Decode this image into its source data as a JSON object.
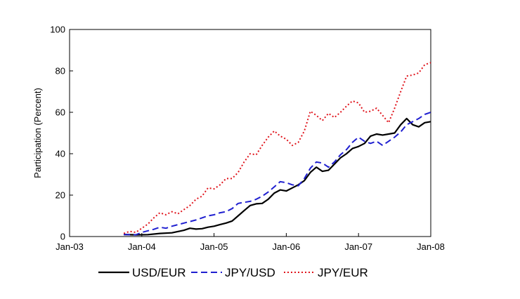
{
  "chart_data": {
    "type": "line",
    "title": "",
    "xlabel": "",
    "ylabel": "Participation (Percent)",
    "xlim": [
      "2003-01",
      "2008-01"
    ],
    "ylim": [
      0,
      100
    ],
    "grid": false,
    "legend_position": "bottom",
    "x_ticks": [
      "Jan-03",
      "Jan-04",
      "Jan-05",
      "Jan-06",
      "Jan-07",
      "Jan-08"
    ],
    "y_ticks": [
      0,
      20,
      40,
      60,
      80,
      100
    ],
    "series": [
      {
        "name": "USD/EUR",
        "color": "#000000",
        "style": "solid",
        "points": [
          [
            "2003-10",
            1.0
          ],
          [
            "2003-12",
            0.8
          ],
          [
            "2004-02",
            0.9
          ],
          [
            "2004-04",
            1.5
          ],
          [
            "2004-06",
            1.8
          ],
          [
            "2004-08",
            3.0
          ],
          [
            "2004-09",
            4.0
          ],
          [
            "2004-10",
            3.6
          ],
          [
            "2004-11",
            3.8
          ],
          [
            "2004-12",
            4.5
          ],
          [
            "2005-01",
            5.0
          ],
          [
            "2005-02",
            5.8
          ],
          [
            "2005-03",
            6.5
          ],
          [
            "2005-04",
            7.5
          ],
          [
            "2005-05",
            10.0
          ],
          [
            "2005-06",
            12.5
          ],
          [
            "2005-07",
            15.0
          ],
          [
            "2005-08",
            15.8
          ],
          [
            "2005-09",
            16.0
          ],
          [
            "2005-10",
            18.0
          ],
          [
            "2005-11",
            21.0
          ],
          [
            "2005-12",
            22.5
          ],
          [
            "2006-01",
            22.0
          ],
          [
            "2006-02",
            23.5
          ],
          [
            "2006-03",
            25.0
          ],
          [
            "2006-04",
            27.0
          ],
          [
            "2006-05",
            31.0
          ],
          [
            "2006-06",
            33.5
          ],
          [
            "2006-07",
            31.5
          ],
          [
            "2006-08",
            32.0
          ],
          [
            "2006-09",
            35.0
          ],
          [
            "2006-10",
            38.0
          ],
          [
            "2006-11",
            40.0
          ],
          [
            "2006-12",
            42.5
          ],
          [
            "2007-01",
            43.5
          ],
          [
            "2007-02",
            45.0
          ],
          [
            "2007-03",
            48.5
          ],
          [
            "2007-04",
            49.5
          ],
          [
            "2007-05",
            49.0
          ],
          [
            "2007-06",
            49.5
          ],
          [
            "2007-07",
            50.0
          ],
          [
            "2007-08",
            54.0
          ],
          [
            "2007-09",
            57.0
          ],
          [
            "2007-10",
            54.0
          ],
          [
            "2007-11",
            53.0
          ],
          [
            "2007-12",
            55.0
          ],
          [
            "2008-01",
            55.5
          ]
        ]
      },
      {
        "name": "JPY/USD",
        "color": "#1f1fd0",
        "style": "dashed",
        "points": [
          [
            "2003-10",
            1.0
          ],
          [
            "2003-12",
            0.8
          ],
          [
            "2004-01",
            2.0
          ],
          [
            "2004-03",
            3.5
          ],
          [
            "2004-04",
            4.5
          ],
          [
            "2004-05",
            4.0
          ],
          [
            "2004-06",
            5.0
          ],
          [
            "2004-08",
            6.5
          ],
          [
            "2004-10",
            8.0
          ],
          [
            "2004-12",
            10.0
          ],
          [
            "2005-01",
            10.5
          ],
          [
            "2005-02",
            11.5
          ],
          [
            "2005-03",
            12.0
          ],
          [
            "2005-04",
            13.5
          ],
          [
            "2005-05",
            16.0
          ],
          [
            "2005-06",
            16.5
          ],
          [
            "2005-07",
            17.0
          ],
          [
            "2005-08",
            18.0
          ],
          [
            "2005-09",
            19.5
          ],
          [
            "2005-10",
            21.5
          ],
          [
            "2005-11",
            24.0
          ],
          [
            "2005-12",
            26.5
          ],
          [
            "2006-01",
            26.0
          ],
          [
            "2006-02",
            25.0
          ],
          [
            "2006-03",
            24.5
          ],
          [
            "2006-04",
            28.0
          ],
          [
            "2006-05",
            33.0
          ],
          [
            "2006-06",
            36.0
          ],
          [
            "2006-07",
            35.5
          ],
          [
            "2006-08",
            33.5
          ],
          [
            "2006-09",
            36.0
          ],
          [
            "2006-10",
            39.5
          ],
          [
            "2006-11",
            42.0
          ],
          [
            "2006-12",
            45.5
          ],
          [
            "2007-01",
            48.0
          ],
          [
            "2007-02",
            46.0
          ],
          [
            "2007-03",
            45.0
          ],
          [
            "2007-04",
            46.0
          ],
          [
            "2007-05",
            44.0
          ],
          [
            "2007-06",
            46.0
          ],
          [
            "2007-07",
            48.0
          ],
          [
            "2007-08",
            50.5
          ],
          [
            "2007-09",
            54.0
          ],
          [
            "2007-10",
            55.5
          ],
          [
            "2007-11",
            57.0
          ],
          [
            "2007-12",
            59.0
          ],
          [
            "2008-01",
            60.0
          ]
        ]
      },
      {
        "name": "JPY/EUR",
        "color": "#e0141c",
        "style": "dotted",
        "points": [
          [
            "2003-10",
            1.5
          ],
          [
            "2003-11",
            2.5
          ],
          [
            "2003-12",
            2.0
          ],
          [
            "2004-01",
            4.0
          ],
          [
            "2004-02",
            6.0
          ],
          [
            "2004-03",
            9.0
          ],
          [
            "2004-04",
            11.5
          ],
          [
            "2004-05",
            10.5
          ],
          [
            "2004-06",
            12.0
          ],
          [
            "2004-07",
            11.0
          ],
          [
            "2004-08",
            13.0
          ],
          [
            "2004-09",
            15.0
          ],
          [
            "2004-10",
            18.0
          ],
          [
            "2004-11",
            19.5
          ],
          [
            "2004-12",
            23.5
          ],
          [
            "2005-01",
            23.0
          ],
          [
            "2005-02",
            25.0
          ],
          [
            "2005-03",
            28.0
          ],
          [
            "2005-04",
            28.0
          ],
          [
            "2005-05",
            31.0
          ],
          [
            "2005-06",
            36.0
          ],
          [
            "2005-07",
            40.0
          ],
          [
            "2005-08",
            39.5
          ],
          [
            "2005-09",
            44.0
          ],
          [
            "2005-10",
            48.0
          ],
          [
            "2005-11",
            51.0
          ],
          [
            "2005-12",
            48.5
          ],
          [
            "2006-01",
            47.0
          ],
          [
            "2006-02",
            44.0
          ],
          [
            "2006-03",
            45.5
          ],
          [
            "2006-04",
            51.0
          ],
          [
            "2006-05",
            60.5
          ],
          [
            "2006-06",
            58.5
          ],
          [
            "2006-07",
            56.0
          ],
          [
            "2006-08",
            59.5
          ],
          [
            "2006-09",
            57.5
          ],
          [
            "2006-10",
            60.0
          ],
          [
            "2006-11",
            63.0
          ],
          [
            "2006-12",
            65.5
          ],
          [
            "2007-01",
            64.5
          ],
          [
            "2007-02",
            60.0
          ],
          [
            "2007-03",
            60.5
          ],
          [
            "2007-04",
            62.0
          ],
          [
            "2007-05",
            58.5
          ],
          [
            "2007-06",
            55.0
          ],
          [
            "2007-07",
            62.0
          ],
          [
            "2007-08",
            70.0
          ],
          [
            "2007-09",
            77.5
          ],
          [
            "2007-10",
            78.0
          ],
          [
            "2007-11",
            79.0
          ],
          [
            "2007-12",
            83.0
          ],
          [
            "2008-01",
            84.0
          ]
        ]
      }
    ]
  }
}
